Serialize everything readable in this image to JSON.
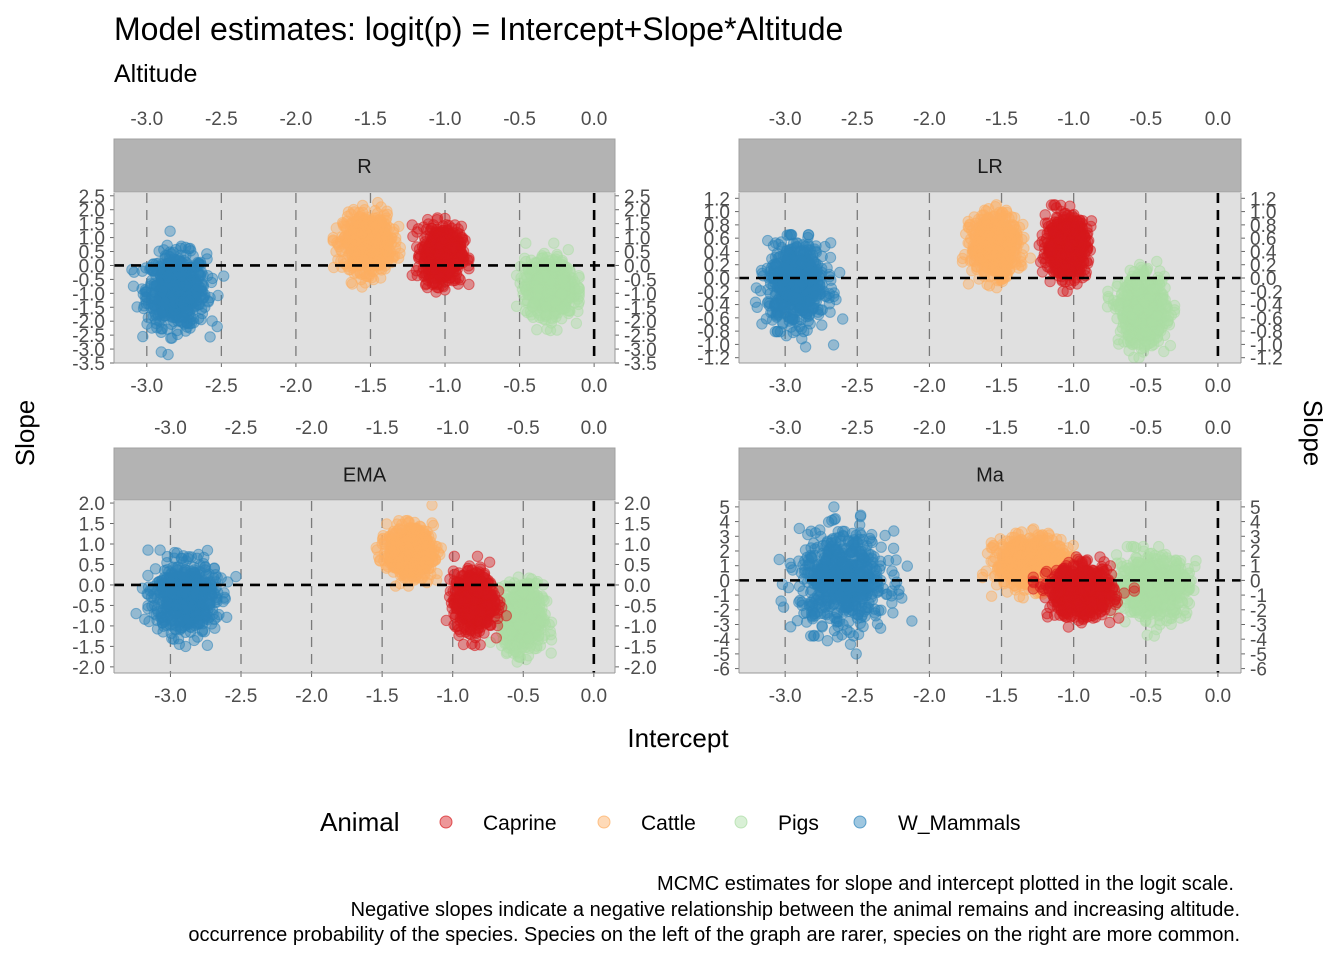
{
  "chart_data": {
    "type": "scatter",
    "title": "Model estimates: logit(p) = Intercept+Slope*Altitude",
    "subtitle": "Altitude",
    "xlabel": "Intercept",
    "ylabel": "Slope",
    "caption": [
      "MCMC estimates for slope and intercept plotted in the logit scale.",
      "Negative slopes indicate a negative relationship between the animal remains and increasing altitude.",
      "occurrence probability of the species. Species on the left of the graph are rarer, species on the right are more common."
    ],
    "legend": {
      "title": "Animal",
      "position": "bottom",
      "entries": [
        {
          "name": "Caprine",
          "color": "#d7191c"
        },
        {
          "name": "Cattle",
          "color": "#fdae61"
        },
        {
          "name": "Pigs",
          "color": "#abdda4"
        },
        {
          "name": "W_Mammals",
          "color": "#2b83ba"
        }
      ]
    },
    "reference_lines": {
      "x": 0,
      "y": 0,
      "style": "dashed"
    },
    "grid": true,
    "panels": [
      {
        "name": "R",
        "xlim": [
          -3.22,
          0.14
        ],
        "ylim": [
          -3.5,
          2.6
        ],
        "x_ticks": [
          "-3.0",
          "-2.5",
          "-2.0",
          "-1.5",
          "-1.0",
          "-0.5",
          "0.0"
        ],
        "x_tick_values": [
          -3.0,
          -2.5,
          -2.0,
          -1.5,
          -1.0,
          -0.5,
          0.0
        ],
        "y_ticks": [
          "-3.5",
          "-3.0",
          "-2.5",
          "-2.0",
          "-1.5",
          "-1.0",
          "-0.5",
          "0.0",
          "0.5",
          "1.0",
          "1.5",
          "2.0",
          "2.5"
        ],
        "y_tick_values": [
          -3.5,
          -3.0,
          -2.5,
          -2.0,
          -1.5,
          -1.0,
          -0.5,
          0.0,
          0.5,
          1.0,
          1.5,
          2.0,
          2.5
        ],
        "clusters": [
          {
            "series": "W_Mammals",
            "cx": -2.8,
            "cy": -0.9,
            "sx": 0.1,
            "sy": 0.65,
            "xmin": -3.1,
            "xmax": -2.45,
            "ymin": -3.2,
            "ymax": 1.3
          },
          {
            "series": "Cattle",
            "cx": -1.52,
            "cy": 0.8,
            "sx": 0.08,
            "sy": 0.5,
            "xmin": -1.75,
            "xmax": -1.28,
            "ymin": -1.0,
            "ymax": 2.5
          },
          {
            "series": "Caprine",
            "cx": -1.02,
            "cy": 0.4,
            "sx": 0.065,
            "sy": 0.5,
            "xmin": -1.22,
            "xmax": -0.84,
            "ymin": -1.4,
            "ymax": 1.8
          },
          {
            "series": "Pigs",
            "cx": -0.3,
            "cy": -0.8,
            "sx": 0.08,
            "sy": 0.5,
            "xmin": -0.52,
            "xmax": -0.1,
            "ymin": -2.6,
            "ymax": 0.8
          }
        ]
      },
      {
        "name": "LR",
        "xlim": [
          -3.32,
          0.16
        ],
        "ylim": [
          -1.28,
          1.28
        ],
        "x_ticks": [
          "-3.0",
          "-2.5",
          "-2.0",
          "-1.5",
          "-1.0",
          "-0.5",
          "0.0"
        ],
        "x_tick_values": [
          -3.0,
          -2.5,
          -2.0,
          -1.5,
          -1.0,
          -0.5,
          0.0
        ],
        "y_ticks": [
          "-1.2",
          "-1.0",
          "-0.8",
          "-0.6",
          "-0.4",
          "-0.2",
          "0.0",
          "0.2",
          "0.4",
          "0.6",
          "0.8",
          "1.0",
          "1.2"
        ],
        "y_tick_values": [
          -1.2,
          -1.0,
          -0.8,
          -0.6,
          -0.4,
          -0.2,
          0.0,
          0.2,
          0.4,
          0.6,
          0.8,
          1.0,
          1.2
        ],
        "clusters": [
          {
            "series": "W_Mammals",
            "cx": -2.92,
            "cy": -0.1,
            "sx": 0.1,
            "sy": 0.3,
            "xmin": -3.22,
            "xmax": -2.6,
            "ymin": -1.2,
            "ymax": 0.65
          },
          {
            "series": "Cattle",
            "cx": -1.55,
            "cy": 0.5,
            "sx": 0.08,
            "sy": 0.22,
            "xmin": -1.8,
            "xmax": -1.3,
            "ymin": -0.35,
            "ymax": 1.18
          },
          {
            "series": "Caprine",
            "cx": -1.05,
            "cy": 0.48,
            "sx": 0.07,
            "sy": 0.22,
            "xmin": -1.3,
            "xmax": -0.82,
            "ymin": -0.2,
            "ymax": 1.1
          },
          {
            "series": "Pigs",
            "cx": -0.52,
            "cy": -0.5,
            "sx": 0.08,
            "sy": 0.25,
            "xmin": -0.8,
            "xmax": -0.3,
            "ymin": -1.2,
            "ymax": 0.25
          }
        ]
      },
      {
        "name": "EMA",
        "xlim": [
          -3.4,
          0.15
        ],
        "ylim": [
          -2.15,
          2.05
        ],
        "x_ticks": [
          "-3.0",
          "-2.5",
          "-2.0",
          "-1.5",
          "-1.0",
          "-0.5",
          "0.0"
        ],
        "x_tick_values": [
          -3.0,
          -2.5,
          -2.0,
          -1.5,
          -1.0,
          -0.5,
          0.0
        ],
        "y_ticks": [
          "-2.0",
          "-1.5",
          "-1.0",
          "-0.5",
          "0.0",
          "0.5",
          "1.0",
          "1.5",
          "2.0"
        ],
        "y_tick_values": [
          -2.0,
          -1.5,
          -1.0,
          -0.5,
          0.0,
          0.5,
          1.0,
          1.5,
          2.0
        ],
        "clusters": [
          {
            "series": "W_Mammals",
            "cx": -2.9,
            "cy": -0.3,
            "sx": 0.11,
            "sy": 0.42,
            "xmin": -3.3,
            "xmax": -2.52,
            "ymin": -2.0,
            "ymax": 0.85
          },
          {
            "series": "Cattle",
            "cx": -1.3,
            "cy": 0.8,
            "sx": 0.08,
            "sy": 0.3,
            "xmin": -1.6,
            "xmax": -1.02,
            "ymin": -0.5,
            "ymax": 1.95
          },
          {
            "series": "Pigs",
            "cx": -0.5,
            "cy": -0.8,
            "sx": 0.07,
            "sy": 0.4,
            "xmin": -0.75,
            "xmax": -0.3,
            "ymin": -2.0,
            "ymax": 0.3
          },
          {
            "series": "Caprine",
            "cx": -0.85,
            "cy": -0.4,
            "sx": 0.07,
            "sy": 0.35,
            "xmin": -1.1,
            "xmax": -0.62,
            "ymin": -1.6,
            "ymax": 0.7
          }
        ]
      },
      {
        "name": "Ma",
        "xlim": [
          -3.32,
          0.16
        ],
        "ylim": [
          -6.3,
          5.4
        ],
        "x_ticks": [
          "-3.0",
          "-2.5",
          "-2.0",
          "-1.5",
          "-1.0",
          "-0.5",
          "0.0"
        ],
        "x_tick_values": [
          -3.0,
          -2.5,
          -2.0,
          -1.5,
          -1.0,
          -0.5,
          0.0
        ],
        "y_ticks": [
          "-6",
          "-5",
          "-4",
          "-3",
          "-2",
          "-1",
          "0",
          "1",
          "2",
          "3",
          "4",
          "5"
        ],
        "y_tick_values": [
          -6,
          -5,
          -4,
          -3,
          -2,
          -1,
          0,
          1,
          2,
          3,
          4,
          5
        ],
        "clusters": [
          {
            "series": "W_Mammals",
            "cx": -2.6,
            "cy": 0.0,
            "sx": 0.15,
            "sy": 1.6,
            "xmin": -3.1,
            "xmax": -2.1,
            "ymin": -5.8,
            "ymax": 5.0
          },
          {
            "series": "Cattle",
            "cx": -1.3,
            "cy": 1.2,
            "sx": 0.12,
            "sy": 0.85,
            "xmin": -1.65,
            "xmax": -0.9,
            "ymin": -1.4,
            "ymax": 3.5
          },
          {
            "series": "Pigs",
            "cx": -0.45,
            "cy": -0.4,
            "sx": 0.12,
            "sy": 1.0,
            "xmin": -0.85,
            "xmax": -0.05,
            "ymin": -3.8,
            "ymax": 2.3
          },
          {
            "series": "Caprine",
            "cx": -0.95,
            "cy": -0.8,
            "sx": 0.11,
            "sy": 0.85,
            "xmin": -1.28,
            "xmax": -0.58,
            "ymin": -3.9,
            "ymax": 1.6
          }
        ]
      }
    ]
  }
}
